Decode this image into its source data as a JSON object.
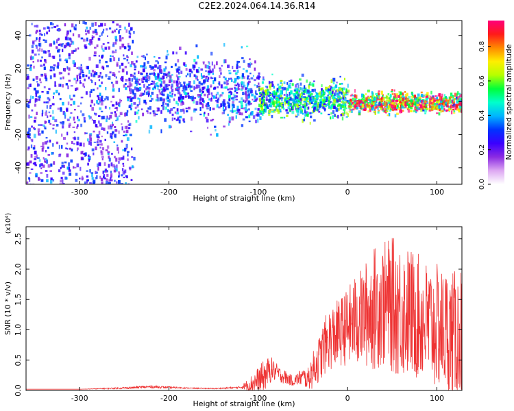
{
  "title": "C2E2.2024.064.14.36.R14",
  "colors": {
    "snr_line": "#ee3333",
    "axis": "#000000",
    "colormap": [
      "#ffffff",
      "#dda8f2",
      "#8a2be2",
      "#3a00ff",
      "#0033ff",
      "#00b5ff",
      "#00ffcc",
      "#00ff3a",
      "#b6ff00",
      "#ffee00",
      "#ff8a00",
      "#ff1a1a",
      "#ff007a"
    ]
  },
  "chart_data": [
    {
      "type": "heatmap",
      "title": "",
      "xlabel": "Height of straight line (km)",
      "ylabel": "Frequency (Hz)",
      "xlim": [
        -360,
        128
      ],
      "ylim": [
        -50,
        49
      ],
      "xticks": [
        -300,
        -200,
        -100,
        0,
        100
      ],
      "yticks": [
        -40,
        -20,
        0,
        20,
        40
      ],
      "colorbar": {
        "label": "Normalized spectral amplitude",
        "range": [
          0,
          0.95
        ],
        "ticks": [
          0.0,
          0.2,
          0.4,
          0.6,
          0.8
        ]
      },
      "features": [
        {
          "x_range": [
            -360,
            -240
          ],
          "description_level": 0.25,
          "freq_spread": [
            -50,
            49
          ]
        },
        {
          "x_range": [
            -240,
            -100
          ],
          "description_level": 0.3,
          "freq_spread": [
            -20,
            25
          ],
          "center_freq": 8
        },
        {
          "x_range": [
            -100,
            0
          ],
          "description_level": 0.45,
          "freq_spread": [
            -10,
            12
          ],
          "center_freq": 2
        },
        {
          "x_range": [
            0,
            128
          ],
          "description_level": 0.7,
          "freq_spread": [
            -6,
            6
          ],
          "center_freq": 0
        }
      ]
    },
    {
      "type": "line",
      "title": "",
      "xlabel": "Height of straight line (km)",
      "ylabel": "SNR (10 * v/v)",
      "y_multiplier": "(x10⁴)",
      "xlim": [
        -360,
        128
      ],
      "ylim": [
        0,
        2.7
      ],
      "xticks": [
        -300,
        -200,
        -100,
        0,
        100
      ],
      "yticks": [
        0.0,
        0.5,
        1.0,
        1.5,
        2.0,
        2.5
      ],
      "series": [
        {
          "x": [
            -360,
            -300,
            -250,
            -220,
            -200,
            -180,
            -150,
            -120,
            -110,
            -100,
            -95,
            -90,
            -85,
            -80,
            -75,
            -70,
            -65,
            -60,
            -55,
            -50,
            -45,
            -40,
            -35,
            -30,
            -27,
            -25,
            -22,
            -20,
            -15,
            -10,
            -5,
            0,
            5,
            10,
            15,
            20,
            25,
            30,
            35,
            40,
            45,
            50,
            55,
            60,
            65,
            70,
            75,
            80,
            85,
            90,
            95,
            100,
            105,
            110,
            115,
            120,
            125
          ],
          "values": [
            0.02,
            0.02,
            0.04,
            0.06,
            0.05,
            0.04,
            0.03,
            0.05,
            0.1,
            0.15,
            0.2,
            0.3,
            0.35,
            0.3,
            0.25,
            0.22,
            0.18,
            0.15,
            0.2,
            0.22,
            0.18,
            0.3,
            0.45,
            0.55,
            0.7,
            0.75,
            0.8,
            0.85,
            0.9,
            0.95,
            1.0,
            1.05,
            1.1,
            1.15,
            1.2,
            1.25,
            1.3,
            1.35,
            1.4,
            1.42,
            1.42,
            1.4,
            1.38,
            1.35,
            1.3,
            1.28,
            1.25,
            1.2,
            1.15,
            1.1,
            1.05,
            1.05,
            1.0,
            1.0,
            0.95,
            0.9,
            0.9
          ],
          "noise_envelope": [
            0.0,
            0.0,
            0.02,
            0.03,
            0.02,
            0.01,
            0.01,
            0.02,
            0.15,
            0.3,
            0.35,
            0.3,
            0.25,
            0.2,
            0.15,
            0.15,
            0.12,
            0.1,
            0.15,
            0.2,
            0.2,
            0.35,
            0.45,
            0.5,
            0.6,
            0.6,
            0.6,
            0.65,
            0.7,
            0.7,
            0.75,
            0.8,
            0.9,
            1.0,
            1.0,
            1.1,
            1.2,
            1.3,
            1.3,
            1.3,
            1.35,
            1.4,
            1.45,
            1.4,
            1.4,
            1.35,
            1.35,
            1.3,
            1.3,
            1.3,
            1.3,
            1.3,
            1.3,
            1.3,
            1.3,
            1.35,
            1.4
          ]
        }
      ]
    }
  ]
}
